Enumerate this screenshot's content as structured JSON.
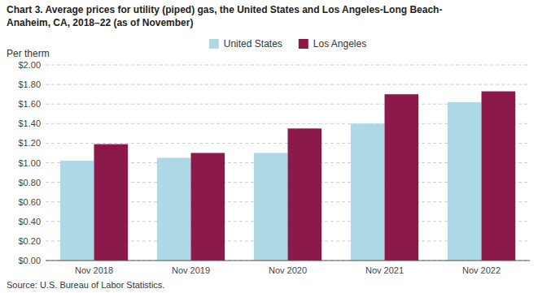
{
  "chart_data": {
    "type": "bar",
    "title": "Chart 3. Average prices for utility (piped) gas, the United States and Los Angeles-Long Beach-\nAnaheim, CA, 2018–22 (as of November)",
    "ylabel": "Per therm",
    "source": "Source: U.S. Bureau of Labor Statistics.",
    "categories": [
      "Nov 2018",
      "Nov 2019",
      "Nov 2020",
      "Nov 2021",
      "Nov 2022"
    ],
    "series": [
      {
        "name": "United States",
        "color": "#add8e6",
        "values": [
          1.02,
          1.05,
          1.1,
          1.4,
          1.62
        ]
      },
      {
        "name": "Los Angeles",
        "color": "#8b1a4a",
        "values": [
          1.19,
          1.1,
          1.35,
          1.7,
          1.73
        ]
      }
    ],
    "ylim": [
      0.0,
      2.0
    ],
    "yticks": [
      {
        "value": 0.0,
        "label": "$0.00"
      },
      {
        "value": 0.2,
        "label": "$0.20"
      },
      {
        "value": 0.4,
        "label": "$0.40"
      },
      {
        "value": 0.6,
        "label": "$0.60"
      },
      {
        "value": 0.8,
        "label": "$0.80"
      },
      {
        "value": 1.0,
        "label": "$1.00"
      },
      {
        "value": 1.2,
        "label": "$1.20"
      },
      {
        "value": 1.4,
        "label": "$1.40"
      },
      {
        "value": 1.6,
        "label": "$1.60"
      },
      {
        "value": 1.8,
        "label": "$1.80"
      },
      {
        "value": 2.0,
        "label": "$2.00"
      }
    ],
    "grid": true,
    "legend": "top"
  }
}
